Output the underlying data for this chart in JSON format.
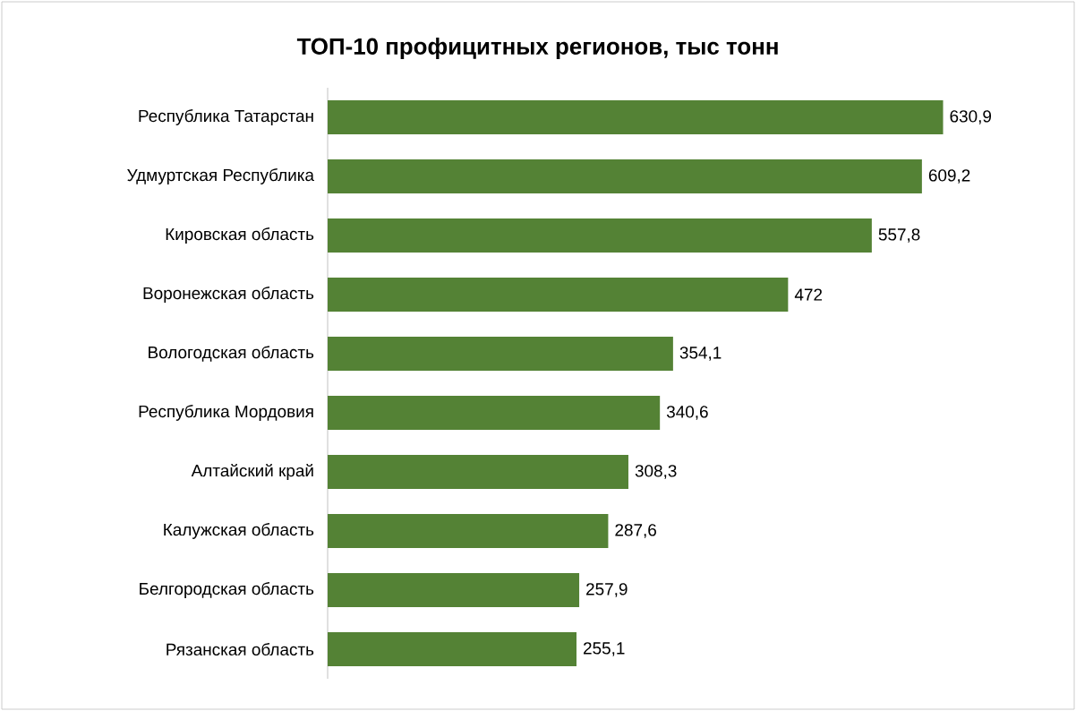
{
  "chart_data": {
    "type": "bar",
    "orientation": "horizontal",
    "title": "ТОП-10 профицитных регионов, тыс тонн",
    "categories": [
      "Республика Татарстан",
      "Удмуртская  Республика",
      "Кировская область",
      "Воронежская область",
      "Вологодская область",
      "Республика Мордовия",
      "Алтайский край",
      "Калужская область",
      "Белгородская область",
      "Рязанская область"
    ],
    "values": [
      630.9,
      609.2,
      557.8,
      472,
      354.1,
      340.6,
      308.3,
      287.6,
      257.9,
      255.1
    ],
    "value_labels": [
      "630,9",
      "609,2",
      "557,8",
      "472",
      "354,1",
      "340,6",
      "308,3",
      "287,6",
      "257,9",
      "255,1"
    ],
    "color": "#548235"
  }
}
